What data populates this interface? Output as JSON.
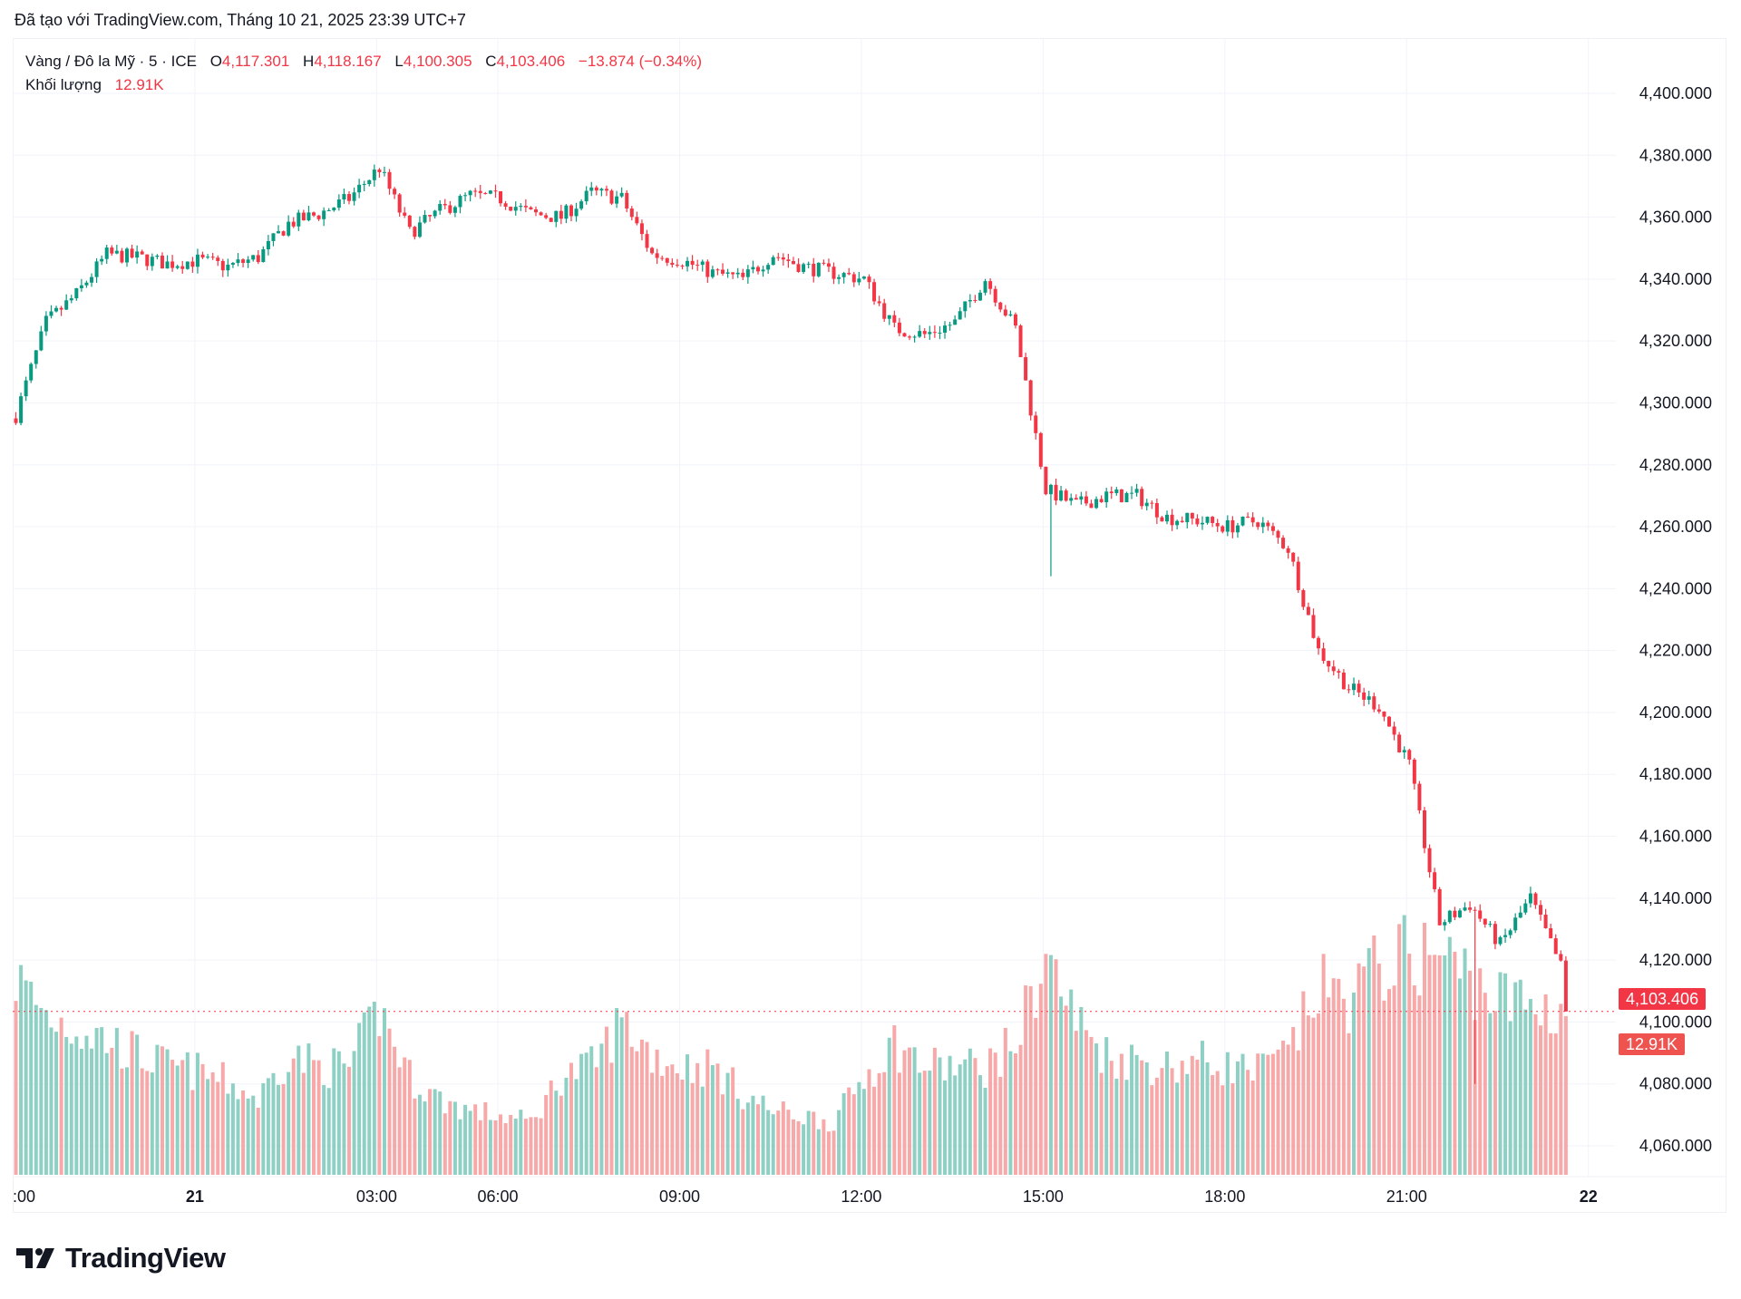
{
  "header": {
    "created": "Đã tạo với TradingView.com, Tháng 10 21, 2025 23:39 UTC+7"
  },
  "legend": {
    "symbol": "Vàng / Đô la Mỹ · 5 · ICE",
    "o_label": "O",
    "o": "4,117.301",
    "h_label": "H",
    "h": "4,118.167",
    "l_label": "L",
    "l": "4,100.305",
    "c_label": "C",
    "c": "4,103.406",
    "change": "−13.874 (−0.34%)",
    "volume_label": "Khối lượng",
    "volume": "12.91K"
  },
  "badges": {
    "price": "4,103.406",
    "volume": "12.91K"
  },
  "logo": {
    "text": "TradingView"
  },
  "colors": {
    "up": "#089981",
    "down": "#F23645",
    "vol_up": "#8FD0C5",
    "vol_down": "#F7A8A8",
    "grid": "#F0F3FA"
  },
  "chart_data": {
    "type": "candlestick",
    "interval_minutes": 5,
    "session_break": [
      "04:00",
      "05:00"
    ],
    "ylim": [
      4050,
      4410
    ],
    "y_ticks": [
      "4,400.000",
      "4,380.000",
      "4,360.000",
      "4,340.000",
      "4,320.000",
      "4,300.000",
      "4,280.000",
      "4,260.000",
      "4,240.000",
      "4,220.000",
      "4,200.000",
      "4,180.000",
      "4,160.000",
      "4,140.000",
      "4,120.000",
      "4,100.000",
      "4,080.000",
      "4,060.000"
    ],
    "x_ticks": [
      ":00",
      "21",
      "03:00",
      "06:00",
      "09:00",
      "12:00",
      "15:00",
      "18:00",
      "21:00",
      "22"
    ],
    "last_price": 4103.406,
    "grid": true,
    "close_waypoints_30min": [
      [
        "2025-10-20T21:00",
        4296,
        16.0
      ],
      [
        "2025-10-20T21:30",
        4326,
        13.0
      ],
      [
        "2025-10-20T22:00",
        4335,
        12.0
      ],
      [
        "2025-10-20T22:30",
        4348,
        11.0
      ],
      [
        "2025-10-20T23:00",
        4347,
        9.8
      ],
      [
        "2025-10-20T23:30",
        4345,
        8.8
      ],
      [
        "2025-10-21T00:00",
        4346,
        8.4
      ],
      [
        "2025-10-21T00:30",
        4344,
        7.5
      ],
      [
        "2025-10-21T01:00",
        4347,
        6.1
      ],
      [
        "2025-10-21T01:30",
        4358,
        9.8
      ],
      [
        "2025-10-21T02:00",
        4361,
        8.8
      ],
      [
        "2025-10-21T02:30",
        4366,
        8.8
      ],
      [
        "2025-10-21T03:00",
        4376,
        13.4
      ],
      [
        "2025-10-21T03:30",
        4355,
        8.0
      ],
      [
        "2025-10-21T05:00",
        4362,
        6.1
      ],
      [
        "2025-10-21T05:30",
        4367,
        5.2
      ],
      [
        "2025-10-21T06:00",
        4366,
        4.8
      ],
      [
        "2025-10-21T06:30",
        4361,
        4.3
      ],
      [
        "2025-10-21T07:00",
        4360,
        8.0
      ],
      [
        "2025-10-21T07:30",
        4368,
        8.8
      ],
      [
        "2025-10-21T08:00",
        4366,
        12.5
      ],
      [
        "2025-10-21T08:30",
        4348,
        9.8
      ],
      [
        "2025-10-21T09:00",
        4346,
        8.8
      ],
      [
        "2025-10-21T09:30",
        4342,
        8.8
      ],
      [
        "2025-10-21T10:00",
        4340,
        6.6
      ],
      [
        "2025-10-21T10:30",
        4348,
        5.2
      ],
      [
        "2025-10-21T11:00",
        4344,
        4.8
      ],
      [
        "2025-10-21T11:30",
        4342,
        4.3
      ],
      [
        "2025-10-21T12:00",
        4340,
        8.0
      ],
      [
        "2025-10-21T12:30",
        4324,
        10.7
      ],
      [
        "2025-10-21T13:00",
        4322,
        8.8
      ],
      [
        "2025-10-21T13:30",
        4326,
        8.8
      ],
      [
        "2025-10-21T14:00",
        4340,
        8.8
      ],
      [
        "2025-10-21T14:30",
        4324,
        10.7
      ],
      [
        "2025-10-21T15:00",
        4272,
        17.9
      ],
      [
        "2025-10-21T15:30",
        4267,
        12.5
      ],
      [
        "2025-10-21T16:00",
        4270,
        9.8
      ],
      [
        "2025-10-21T16:30",
        4270,
        9.3
      ],
      [
        "2025-10-21T17:00",
        4263,
        8.8
      ],
      [
        "2025-10-21T17:30",
        4262,
        9.3
      ],
      [
        "2025-10-21T18:00",
        4260,
        8.8
      ],
      [
        "2025-10-21T18:30",
        4262,
        8.4
      ],
      [
        "2025-10-21T19:00",
        4253,
        9.8
      ],
      [
        "2025-10-21T19:30",
        4220,
        15.2
      ],
      [
        "2025-10-21T20:00",
        4208,
        14.3
      ],
      [
        "2025-10-21T20:30",
        4202,
        17.0
      ],
      [
        "2025-10-21T21:00",
        4183,
        17.9
      ],
      [
        "2025-10-21T21:30",
        4132,
        17.9
      ],
      [
        "2025-10-21T22:00",
        4138,
        16.0
      ],
      [
        "2025-10-21T22:30",
        4125,
        14.3
      ],
      [
        "2025-10-21T23:00",
        4140,
        13.8
      ],
      [
        "2025-10-21T23:30",
        4118,
        13.4
      ],
      [
        "2025-10-21T23:35",
        4103.406,
        12.91
      ]
    ],
    "waypoint_fields": [
      "time",
      "close",
      "volume_k"
    ],
    "low_spikes": [
      [
        "2025-10-21T15:05",
        4244
      ],
      [
        "2025-10-21T22:05",
        4080
      ]
    ]
  }
}
